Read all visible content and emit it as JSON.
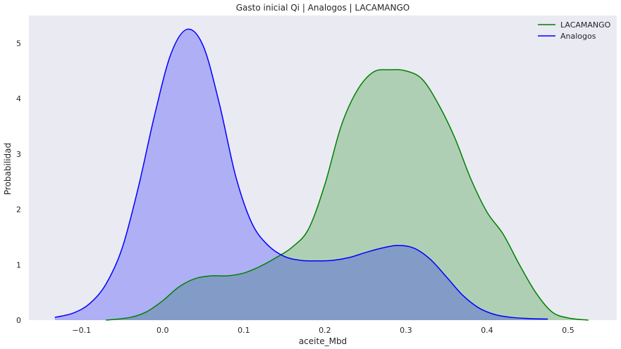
{
  "chart_data": {
    "type": "area",
    "title": "Gasto inicial Qi | Analogos | LACAMANGO",
    "xlabel": "aceite_Mbd",
    "ylabel": "Probabilidad",
    "xlim": [
      -0.165,
      0.56
    ],
    "ylim": [
      0,
      5.5
    ],
    "xticks": [
      -0.1,
      0.0,
      0.1,
      0.2,
      0.3,
      0.4,
      0.5
    ],
    "xtick_labels": [
      "−0.1",
      "0.0",
      "0.1",
      "0.2",
      "0.3",
      "0.4",
      "0.5"
    ],
    "yticks": [
      0,
      1,
      2,
      3,
      4,
      5
    ],
    "ytick_labels": [
      "0",
      "1",
      "2",
      "3",
      "4",
      "5"
    ],
    "grid": false,
    "background": "#eaeaf2",
    "legend_position": "top-right",
    "series": [
      {
        "name": "LACAMANGO",
        "color": "#008000",
        "fill": "#b0cfb5",
        "x": [
          -0.07,
          -0.04,
          -0.02,
          0.0,
          0.02,
          0.04,
          0.06,
          0.08,
          0.1,
          0.12,
          0.14,
          0.16,
          0.18,
          0.2,
          0.22,
          0.24,
          0.26,
          0.28,
          0.3,
          0.32,
          0.34,
          0.36,
          0.38,
          0.4,
          0.42,
          0.44,
          0.46,
          0.48,
          0.5,
          0.525
        ],
        "y": [
          0.0,
          0.05,
          0.15,
          0.35,
          0.6,
          0.75,
          0.8,
          0.8,
          0.85,
          0.97,
          1.13,
          1.32,
          1.65,
          2.45,
          3.5,
          4.15,
          4.48,
          4.52,
          4.5,
          4.35,
          3.9,
          3.3,
          2.55,
          1.95,
          1.55,
          1.0,
          0.5,
          0.15,
          0.04,
          0.0
        ]
      },
      {
        "name": "Analogos",
        "color": "#0000ff",
        "fill": "#aeaff5",
        "x": [
          -0.133,
          -0.11,
          -0.09,
          -0.07,
          -0.05,
          -0.03,
          -0.01,
          0.01,
          0.03,
          0.05,
          0.07,
          0.09,
          0.11,
          0.13,
          0.15,
          0.17,
          0.19,
          0.21,
          0.23,
          0.25,
          0.27,
          0.29,
          0.31,
          0.33,
          0.35,
          0.37,
          0.39,
          0.41,
          0.43,
          0.45,
          0.475
        ],
        "y": [
          0.05,
          0.13,
          0.3,
          0.65,
          1.3,
          2.4,
          3.7,
          4.8,
          5.25,
          4.95,
          3.9,
          2.6,
          1.75,
          1.35,
          1.15,
          1.08,
          1.07,
          1.08,
          1.13,
          1.22,
          1.3,
          1.35,
          1.3,
          1.1,
          0.78,
          0.45,
          0.22,
          0.1,
          0.05,
          0.03,
          0.02
        ]
      }
    ]
  }
}
